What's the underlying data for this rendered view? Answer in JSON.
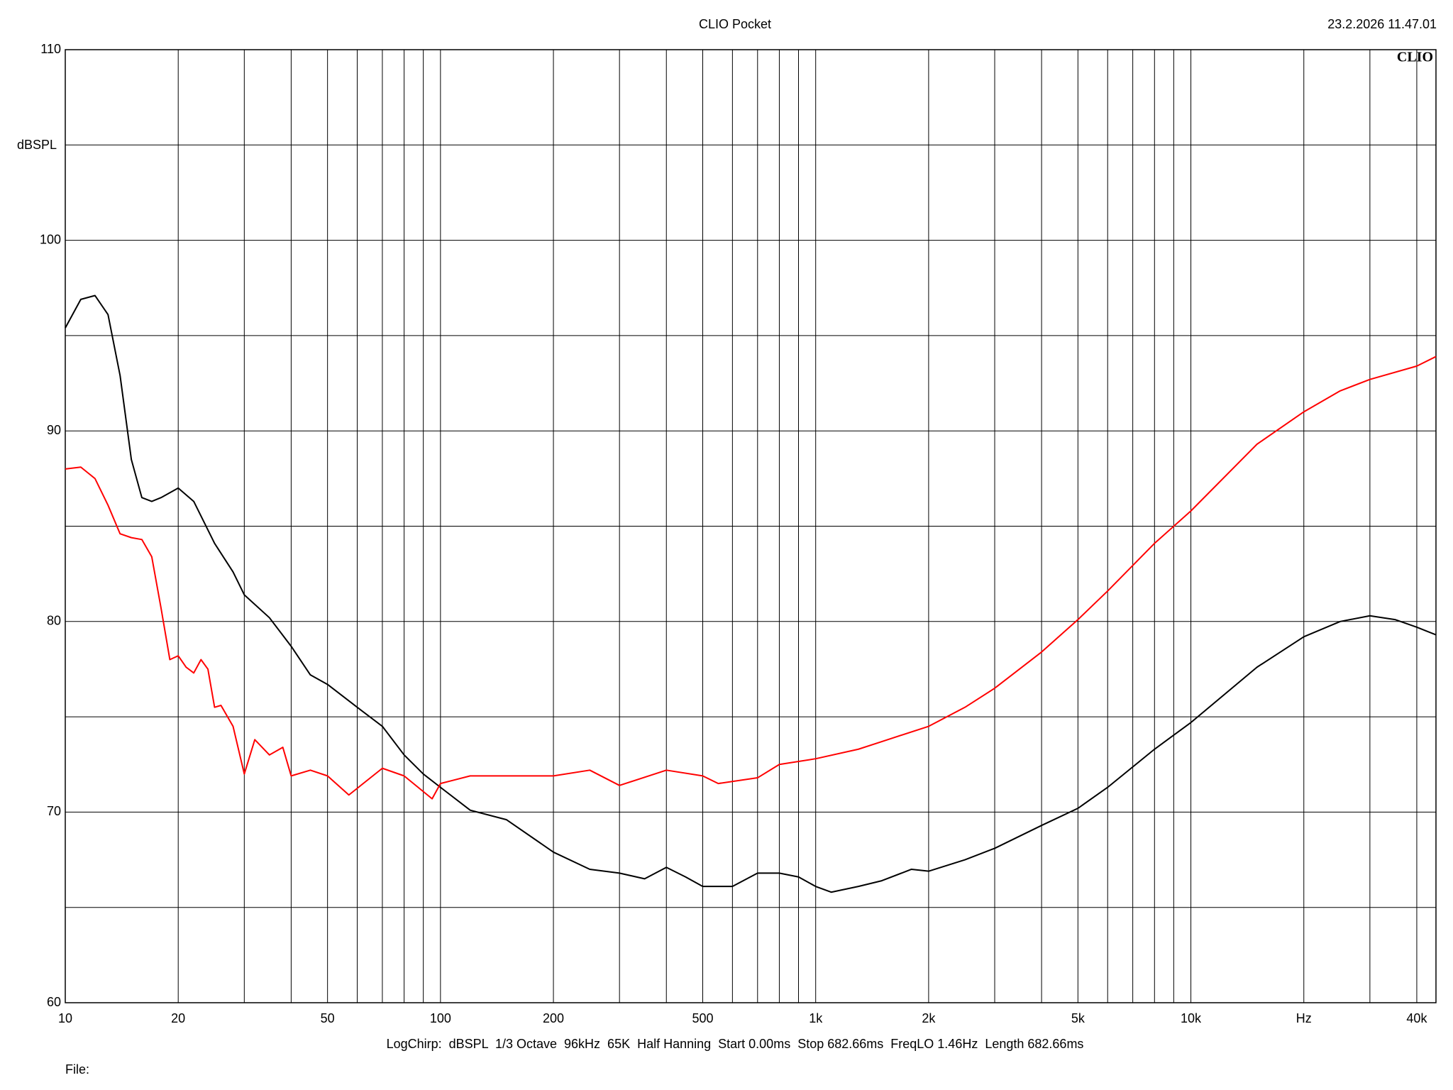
{
  "chart_data": {
    "type": "line",
    "title": "CLIO Pocket",
    "timestamp": "23.2.2026 11.47.01",
    "logo": "CLIO",
    "ylabel": "dBSPL",
    "footer": "LogChirp:  dBSPL  1/3 Octave  96kHz  65K  Half Hanning  Start 0.00ms  Stop 682.66ms  FreqLO 1.46Hz  Length 682.66ms",
    "file_label": "File:",
    "xscale": "log",
    "grid": true,
    "xlim": [
      10,
      45000
    ],
    "xticks": [
      10,
      20,
      50,
      100,
      200,
      500,
      {
        "value": 1000,
        "label": "1k"
      },
      {
        "value": 2000,
        "label": "2k"
      },
      {
        "value": 5000,
        "label": "5k"
      },
      {
        "value": 10000,
        "label": "10k"
      },
      {
        "value": 20000,
        "label": "Hz"
      },
      {
        "value": 40000,
        "label": "40k"
      }
    ],
    "xminor": [
      30,
      40,
      60,
      70,
      80,
      90,
      300,
      400,
      600,
      700,
      800,
      900,
      3000,
      4000,
      6000,
      7000,
      8000,
      9000,
      30000
    ],
    "ylim": [
      60,
      110
    ],
    "yticks": [
      60,
      70,
      80,
      90,
      100,
      110
    ],
    "yminor": [
      65,
      75,
      85,
      95,
      105
    ],
    "series": [
      {
        "color": "#000000",
        "x": [
          10,
          11,
          12,
          13,
          14,
          15,
          16,
          17,
          18,
          20,
          22,
          25,
          28,
          30,
          35,
          40,
          45,
          50,
          60,
          70,
          80,
          90,
          100,
          120,
          150,
          200,
          250,
          300,
          350,
          400,
          450,
          500,
          600,
          700,
          800,
          900,
          1000,
          1100,
          1300,
          1500,
          1800,
          2000,
          2500,
          3000,
          4000,
          5000,
          6000,
          8000,
          10000,
          15000,
          20000,
          25000,
          30000,
          35000,
          40000,
          45000
        ],
        "values": [
          95.4,
          96.9,
          97.1,
          96.1,
          92.9,
          88.5,
          86.5,
          86.3,
          86.5,
          87.0,
          86.3,
          84.1,
          82.6,
          81.4,
          80.2,
          78.7,
          77.2,
          76.7,
          75.5,
          74.5,
          73.0,
          72.0,
          71.3,
          70.1,
          69.6,
          67.9,
          67.0,
          66.8,
          66.5,
          67.1,
          66.6,
          66.1,
          66.1,
          66.8,
          66.8,
          66.6,
          66.1,
          65.8,
          66.1,
          66.4,
          67.0,
          66.9,
          67.5,
          68.1,
          69.3,
          70.2,
          71.3,
          73.3,
          74.7,
          77.6,
          79.2,
          80.0,
          80.3,
          80.1,
          79.7,
          79.3
        ]
      },
      {
        "color": "#ff0000",
        "x": [
          10,
          11,
          12,
          13,
          14,
          15,
          16,
          17,
          18,
          19,
          20,
          21,
          22,
          23,
          24,
          25,
          26,
          28,
          30,
          32,
          35,
          38,
          40,
          45,
          50,
          57,
          70,
          80,
          95,
          100,
          120,
          150,
          200,
          250,
          300,
          400,
          500,
          550,
          700,
          800,
          1000,
          1300,
          1500,
          2000,
          2500,
          3000,
          4000,
          5000,
          6000,
          8000,
          10000,
          15000,
          20000,
          25000,
          30000,
          40000,
          45000
        ],
        "values": [
          88.0,
          88.1,
          87.5,
          86.1,
          84.6,
          84.4,
          84.3,
          83.4,
          80.7,
          78.0,
          78.2,
          77.6,
          77.3,
          78.0,
          77.5,
          75.5,
          75.6,
          74.5,
          72.0,
          73.8,
          73.0,
          73.4,
          71.9,
          72.2,
          71.9,
          70.9,
          72.3,
          71.9,
          70.7,
          71.5,
          71.9,
          71.9,
          71.9,
          72.2,
          71.4,
          72.2,
          71.9,
          71.5,
          71.8,
          72.5,
          72.8,
          73.3,
          73.7,
          74.5,
          75.5,
          76.5,
          78.4,
          80.1,
          81.6,
          84.1,
          85.8,
          89.3,
          91.0,
          92.1,
          92.7,
          93.4,
          93.9
        ]
      }
    ]
  }
}
